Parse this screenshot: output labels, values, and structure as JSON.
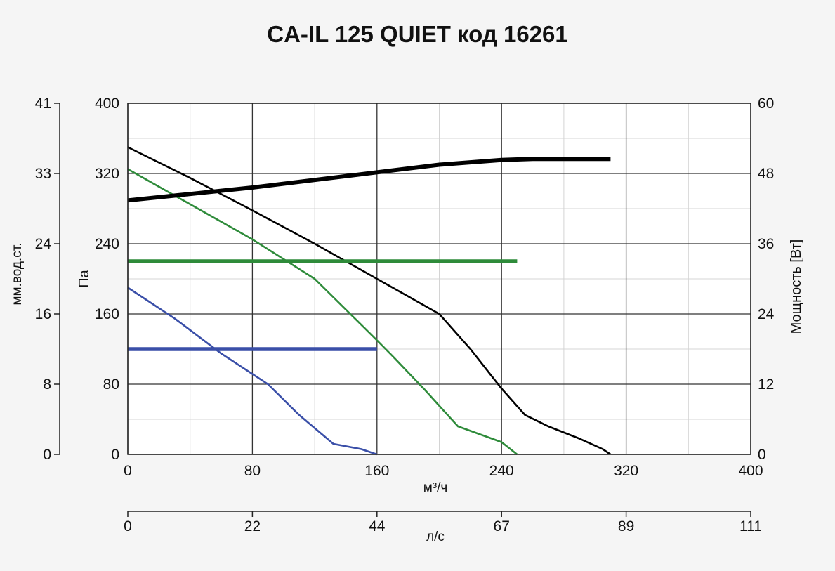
{
  "chart_data": {
    "type": "line",
    "title": "CA-IL 125 QUIET код 16261",
    "xlabel": "м³/ч",
    "ylabel": "Па",
    "y2label": "мм.вод.ст.",
    "y3label": "Мощность [Вт]",
    "x2label": "л/с",
    "xlim": [
      0,
      400
    ],
    "ylim": [
      0,
      400
    ],
    "y_ticks": [
      0,
      80,
      160,
      240,
      320,
      400
    ],
    "x_ticks": [
      0,
      80,
      160,
      240,
      320,
      400
    ],
    "x2_ticks": [
      "0",
      "22",
      "44",
      "67",
      "89",
      "111"
    ],
    "y2_ticks": [
      "0",
      "8",
      "16",
      "24",
      "33",
      "41"
    ],
    "y3_ticks": [
      "0",
      "12",
      "24",
      "36",
      "48",
      "60"
    ],
    "power_lim": [
      0,
      60
    ],
    "grid": true,
    "series": [
      {
        "kind": "pressure",
        "color": "#000000",
        "x": [
          0,
          40,
          80,
          120,
          160,
          180,
          200,
          220,
          240,
          255,
          270,
          290,
          305,
          310
        ],
        "y": [
          350,
          315,
          278,
          240,
          200,
          180,
          160,
          120,
          75,
          45,
          32,
          18,
          6,
          0
        ]
      },
      {
        "kind": "pressure",
        "color": "#2e8b3a",
        "x": [
          0,
          40,
          80,
          120,
          160,
          170,
          190,
          212,
          240,
          250
        ],
        "y": [
          325,
          285,
          245,
          200,
          130,
          112,
          75,
          32,
          14,
          0
        ]
      },
      {
        "kind": "pressure",
        "color": "#3a4fa8",
        "x": [
          0,
          30,
          60,
          90,
          110,
          132,
          150,
          160
        ],
        "y": [
          190,
          155,
          115,
          80,
          45,
          12,
          6,
          0
        ]
      },
      {
        "kind": "power",
        "color": "#000000",
        "x": [
          0,
          40,
          80,
          120,
          160,
          200,
          240,
          260,
          310
        ],
        "y": [
          43.4,
          44.5,
          45.6,
          46.9,
          48.2,
          49.5,
          50.3,
          50.5,
          50.5
        ]
      },
      {
        "kind": "power",
        "color": "#2e8b3a",
        "x": [
          0,
          250
        ],
        "y": [
          33,
          33
        ]
      },
      {
        "kind": "power",
        "color": "#3a4fa8",
        "x": [
          0,
          160
        ],
        "y": [
          18,
          18
        ]
      }
    ]
  }
}
